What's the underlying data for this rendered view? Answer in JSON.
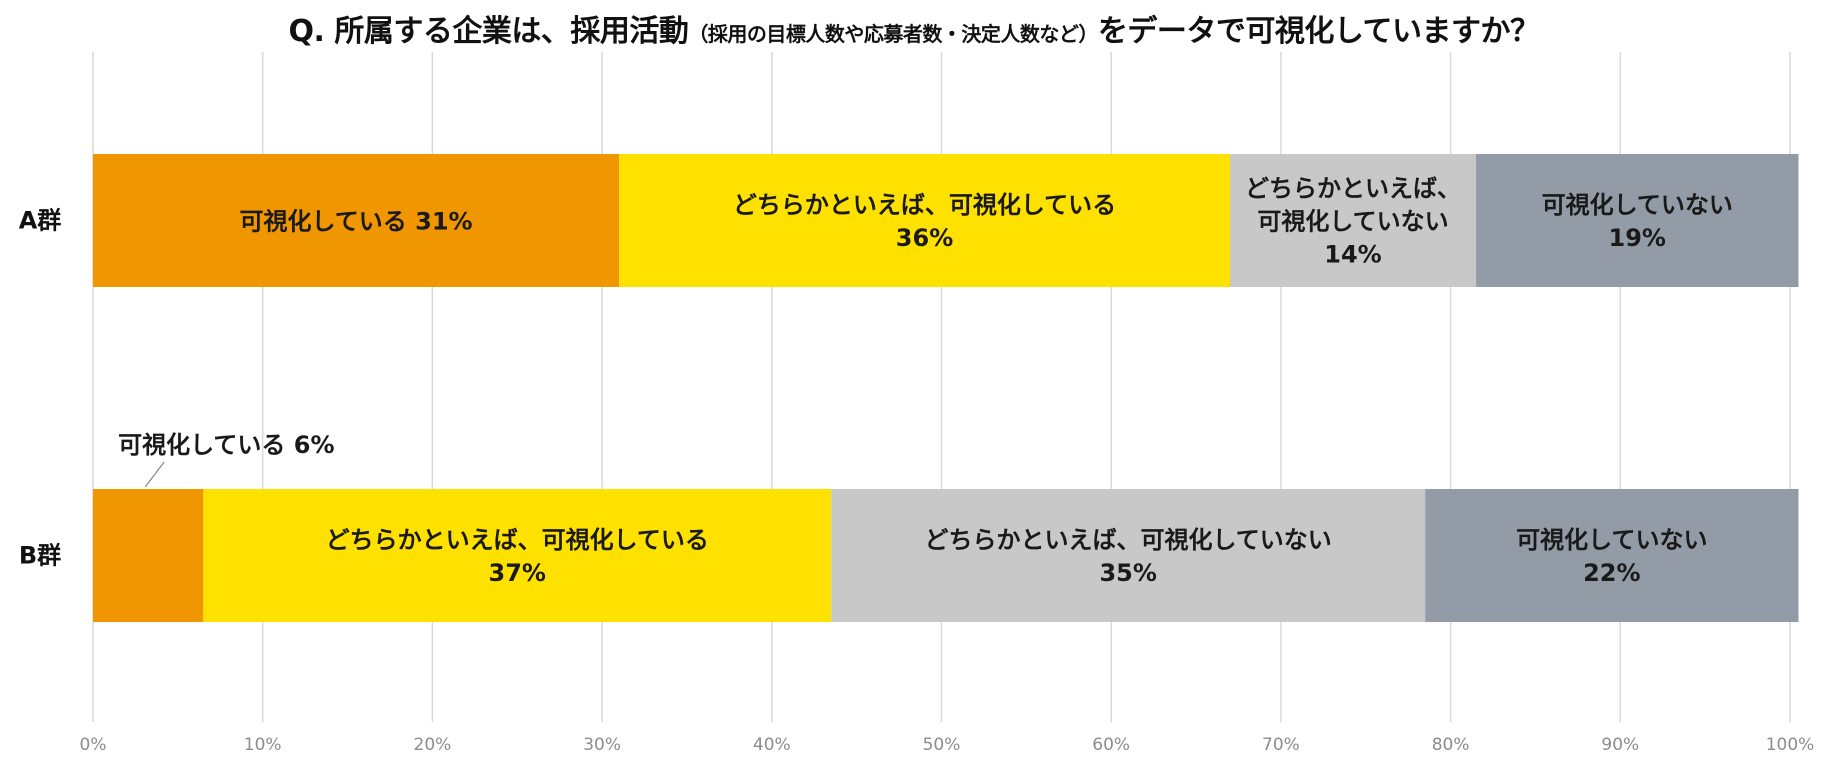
{
  "title": {
    "main_before": "Q. 所属する企業は、採用活動",
    "sub": "（採用の目標人数や応募者数・決定人数など）",
    "main_after": "をデータで可視化していますか？"
  },
  "chart_data": {
    "type": "bar",
    "orientation": "horizontal",
    "stacked": true,
    "categories": [
      "A群",
      "B群"
    ],
    "series": [
      {
        "name": "可視化している",
        "color": "#f09600",
        "values": [
          31,
          6.5
        ]
      },
      {
        "name": "どちらかといえば、可視化している",
        "color": "#ffe100",
        "values": [
          36,
          37
        ]
      },
      {
        "name": "どちらかといえば、可視化していない",
        "color": "#c8c8c8",
        "values": [
          14.5,
          35
        ]
      },
      {
        "name": "可視化していない",
        "color": "#929ba6",
        "values": [
          19,
          22
        ]
      }
    ],
    "data_labels": [
      [
        [
          "可視化している 31%"
        ],
        [
          "どちらかといえば、可視化している",
          "36%"
        ],
        [
          "どちらかといえば、",
          "可視化していない",
          "14%"
        ],
        [
          "可視化していない",
          "19%"
        ]
      ],
      [
        [],
        [
          "どちらかといえば、可視化している",
          "37%"
        ],
        [
          "どちらかといえば、可視化していない",
          "35%"
        ],
        [
          "可視化していない",
          "22%"
        ]
      ]
    ],
    "callouts": [
      {
        "category_index": 1,
        "series_index": 0,
        "text": "可視化している 6%"
      }
    ],
    "xlim": [
      0,
      100
    ],
    "xticks": [
      0,
      10,
      20,
      30,
      40,
      50,
      60,
      70,
      80,
      90,
      100
    ],
    "tick_suffix": "%",
    "grid": true,
    "legend": "none"
  }
}
